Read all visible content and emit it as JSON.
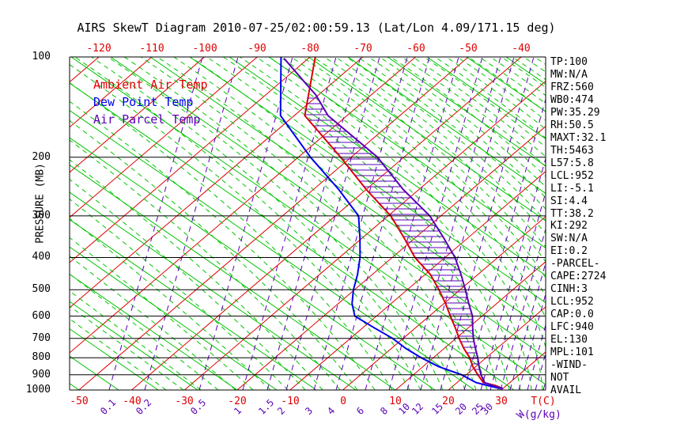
{
  "title": "AIRS SkewT Diagram 2010-07-25/02:00:59.13 (Lat/Lon 4.09/171.15 deg)",
  "colors": {
    "ambient": "#e00000",
    "dewpoint": "#0000ee",
    "parcel": "#5a00b4",
    "isotherm": "#e00000",
    "dry_adiabat": "#00c400",
    "moist_adiabat": "#00c400",
    "mixing_ratio": "#5a00b4",
    "frame": "#000000",
    "hatch": "#5a00b4"
  },
  "legend": [
    {
      "label": "Ambient Air Temp",
      "color_key": "ambient"
    },
    {
      "label": "Dew Point Temp",
      "color_key": "dewpoint"
    },
    {
      "label": "Air Parcel Temp",
      "color_key": "parcel"
    }
  ],
  "axes": {
    "pressure_label": "PRESSURE (MB)",
    "pressure_ticks": [
      100,
      200,
      300,
      400,
      500,
      600,
      700,
      800,
      900,
      1000
    ],
    "top_temp_ticks": [
      -120,
      -110,
      -100,
      -90,
      -80,
      -70,
      -60,
      -50,
      -40
    ],
    "bottom_temp_ticks": [
      -50,
      -40,
      -30,
      -20,
      -10,
      0,
      10,
      20,
      30
    ],
    "temp_unit": "T(C)",
    "mixing_ratio_ticks": [
      "0.1",
      "0.2",
      "0.5",
      "1",
      "1.5",
      "2",
      "3",
      "4",
      "6",
      "8",
      "10",
      "12",
      "15",
      "20",
      "25",
      "30"
    ],
    "mixing_unit_prefix": "W",
    "mixing_unit": "(g/kg)"
  },
  "stats": [
    "TP:100",
    "MW:N/A",
    "FRZ:560",
    "WB0:474",
    "PW:35.29",
    "RH:50.5",
    "MAXT:32.1",
    "TH:5463",
    "L57:5.8",
    "LCL:952",
    "LI:-5.1",
    "SI:4.4",
    "TT:38.2",
    "KI:292",
    "SW:N/A",
    "EI:0.2",
    "-PARCEL-",
    "CAPE:2724",
    "CINH:3",
    "LCL:952",
    "CAP:0.0",
    "LFC:940",
    "EL:130",
    "MPL:101",
    "-WIND-",
    "NOT",
    "AVAIL"
  ],
  "chart_data": {
    "type": "line",
    "subtype": "skewt-log-p",
    "pressure_axis": {
      "scale": "log",
      "min": 100,
      "max": 1000,
      "unit": "MB",
      "ticks": [
        100,
        200,
        300,
        400,
        500,
        600,
        700,
        800,
        900,
        1000
      ]
    },
    "temp_axis": {
      "unit": "C",
      "surface_labels": [
        -50,
        -40,
        -30,
        -20,
        -10,
        0,
        10,
        20,
        30
      ],
      "top_labels": [
        -120,
        -110,
        -100,
        -90,
        -80,
        -70,
        -60,
        -50,
        -40
      ]
    },
    "series": [
      {
        "name": "Ambient Air Temp",
        "color_key": "ambient",
        "points": [
          [
            100,
            -79
          ],
          [
            150,
            -68
          ],
          [
            200,
            -52
          ],
          [
            250,
            -40
          ],
          [
            300,
            -29.5
          ],
          [
            350,
            -22
          ],
          [
            400,
            -15.7
          ],
          [
            450,
            -9
          ],
          [
            500,
            -4
          ],
          [
            550,
            0.3
          ],
          [
            600,
            4
          ],
          [
            650,
            7.5
          ],
          [
            700,
            10.6
          ],
          [
            750,
            13.7
          ],
          [
            800,
            16.9
          ],
          [
            850,
            19.4
          ],
          [
            900,
            22.2
          ],
          [
            950,
            25
          ],
          [
            970,
            28
          ],
          [
            990,
            30
          ]
        ]
      },
      {
        "name": "Dew Point Temp",
        "color_key": "dewpoint",
        "points": [
          [
            100,
            -85.5
          ],
          [
            150,
            -72.6
          ],
          [
            200,
            -57.7
          ],
          [
            250,
            -45.2
          ],
          [
            300,
            -35.6
          ],
          [
            350,
            -30.4
          ],
          [
            400,
            -26.1
          ],
          [
            450,
            -22.8
          ],
          [
            500,
            -20.2
          ],
          [
            550,
            -17.4
          ],
          [
            600,
            -14.1
          ],
          [
            650,
            -7.9
          ],
          [
            700,
            -2.0
          ],
          [
            750,
            2.7
          ],
          [
            800,
            7.7
          ],
          [
            850,
            12.9
          ],
          [
            900,
            19.1
          ],
          [
            950,
            23.6
          ],
          [
            970,
            26.5
          ],
          [
            990,
            29.5
          ]
        ]
      },
      {
        "name": "Air Parcel Temp",
        "color_key": "parcel",
        "points": [
          [
            101,
            -84.6
          ],
          [
            120,
            -75
          ],
          [
            130,
            -70.5
          ],
          [
            150,
            -63.6
          ],
          [
            200,
            -45
          ],
          [
            250,
            -33
          ],
          [
            300,
            -22.1
          ],
          [
            350,
            -14.5
          ],
          [
            400,
            -8.1
          ],
          [
            450,
            -3.2
          ],
          [
            500,
            1.0
          ],
          [
            550,
            4.7
          ],
          [
            600,
            8.2
          ],
          [
            650,
            10.8
          ],
          [
            700,
            13.3
          ],
          [
            750,
            15.9
          ],
          [
            800,
            18.4
          ],
          [
            850,
            20.6
          ],
          [
            900,
            22.8
          ],
          [
            950,
            25.2
          ],
          [
            970,
            27.5
          ],
          [
            990,
            30
          ]
        ]
      }
    ],
    "cape_hatch": {
      "between": [
        "Ambient Air Temp",
        "Air Parcel Temp"
      ],
      "style": "horizontal-lines"
    }
  }
}
